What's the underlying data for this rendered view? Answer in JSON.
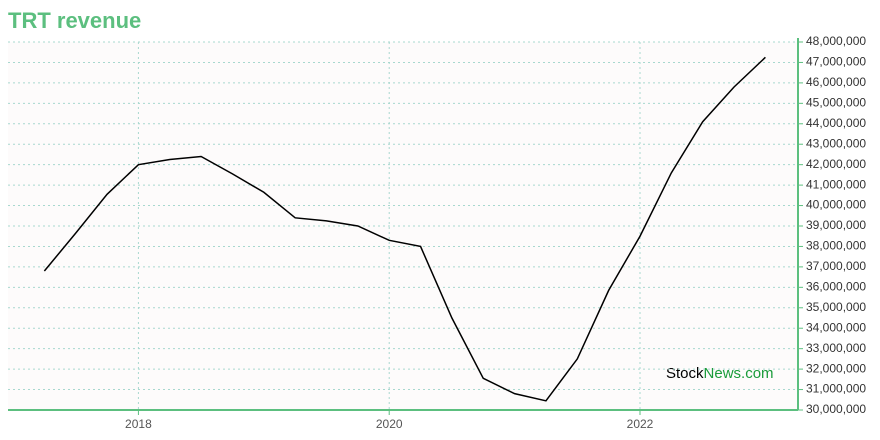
{
  "chart_data": {
    "type": "line",
    "title": "TRT revenue",
    "watermark": {
      "left": "Stock",
      "right": "News.com"
    },
    "x": [
      2017.25,
      2017.5,
      2017.75,
      2018,
      2018.25,
      2018.5,
      2018.75,
      2019,
      2019.25,
      2019.5,
      2019.75,
      2020,
      2020.25,
      2020.5,
      2020.75,
      2021,
      2021.25,
      2021.5,
      2021.75,
      2022,
      2022.25,
      2022.5,
      2022.75,
      2023
    ],
    "series": [
      {
        "name": "TRT revenue",
        "color": "#000000",
        "values": [
          36800000,
          38650000,
          40550000,
          42000000,
          42250000,
          42400000,
          41550000,
          40650000,
          39400000,
          39250000,
          39000000,
          38300000,
          38000000,
          34500000,
          31550000,
          30800000,
          30450000,
          32500000,
          35850000,
          38500000,
          41600000,
          44100000,
          45800000,
          47250000
        ]
      }
    ],
    "xlim": [
      2016.96,
      2023.26
    ],
    "xticks": [
      2018,
      2020,
      2022
    ],
    "ylim": [
      30000000,
      48000000
    ],
    "yticks": [
      {
        "value": 30000000,
        "label": "30,000,000"
      },
      {
        "value": 31000000,
        "label": "31,000,000"
      },
      {
        "value": 32000000,
        "label": "32,000,000"
      },
      {
        "value": 33000000,
        "label": "33,000,000"
      },
      {
        "value": 34000000,
        "label": "34,000,000"
      },
      {
        "value": 35000000,
        "label": "35,000,000"
      },
      {
        "value": 36000000,
        "label": "36,000,000"
      },
      {
        "value": 37000000,
        "label": "37,000,000"
      },
      {
        "value": 38000000,
        "label": "38,000,000"
      },
      {
        "value": 39000000,
        "label": "39,000,000"
      },
      {
        "value": 40000000,
        "label": "40,000,000"
      },
      {
        "value": 41000000,
        "label": "41,000,000"
      },
      {
        "value": 42000000,
        "label": "42,000,000"
      },
      {
        "value": 43000000,
        "label": "43,000,000"
      },
      {
        "value": 44000000,
        "label": "44,000,000"
      },
      {
        "value": 45000000,
        "label": "45,000,000"
      },
      {
        "value": 46000000,
        "label": "46,000,000"
      },
      {
        "value": 47000000,
        "label": "47,000,000"
      },
      {
        "value": 48000000,
        "label": "48,000,000"
      }
    ],
    "grid": true,
    "axis_color": "#5cbf7f",
    "grid_color": "#a8d8cf"
  }
}
